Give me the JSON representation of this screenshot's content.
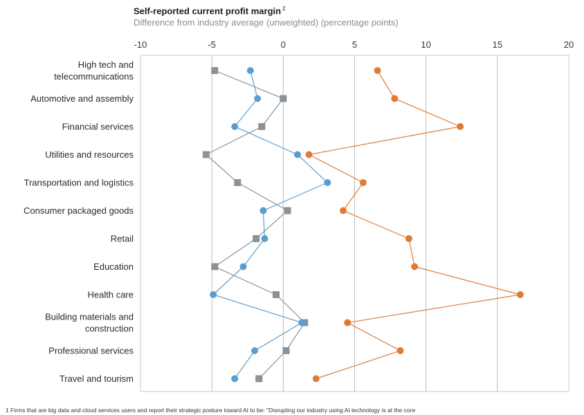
{
  "title": "Self-reported current profit margin",
  "title_superscript": "2",
  "subtitle": "Difference from industry average (unweighted) (percentage points)",
  "footnote": "1  Firms that are big data and cloud services users and report their strategic posture toward AI to be: \"Disrupting our industry using AI technology is at the core",
  "colors": {
    "blue": "#5a9ecf",
    "gray": "#8a9299",
    "orange": "#e07b35",
    "grid": "#bcbcbc",
    "frame": "#c8c8c8"
  },
  "chart_data": {
    "type": "scatter",
    "x_ticks": [
      -10,
      -5,
      0,
      5,
      10,
      15,
      20
    ],
    "xlim": [
      -10,
      20
    ],
    "x_axis_position": "top",
    "grid": "vertical",
    "categories": [
      [
        "High tech and",
        "telecommunications"
      ],
      [
        "Automotive and assembly"
      ],
      [
        "Financial services"
      ],
      [
        "Utilities and resources"
      ],
      [
        "Transportation and logistics"
      ],
      [
        "Consumer packaged goods"
      ],
      [
        "Retail"
      ],
      [
        "Education"
      ],
      [
        "Health care"
      ],
      [
        "Building materials and",
        "construction"
      ],
      [
        "Professional services"
      ],
      [
        "Travel and tourism"
      ]
    ],
    "series": [
      {
        "color": "#8a9299",
        "marker": "square",
        "values": [
          -4.8,
          0.0,
          -1.5,
          -5.4,
          -3.2,
          0.3,
          -1.9,
          -4.8,
          -0.5,
          1.5,
          0.2,
          -1.7
        ]
      },
      {
        "color": "#5a9ecf",
        "marker": "circle",
        "values": [
          -2.3,
          -1.8,
          -3.4,
          1.0,
          3.1,
          -1.4,
          -1.3,
          -2.8,
          -4.9,
          1.3,
          -2.0,
          -3.4
        ]
      },
      {
        "color": "#e07b35",
        "marker": "circle",
        "values": [
          6.6,
          7.8,
          12.4,
          1.8,
          5.6,
          4.2,
          8.8,
          9.2,
          16.6,
          4.5,
          8.2,
          2.3
        ]
      }
    ]
  }
}
